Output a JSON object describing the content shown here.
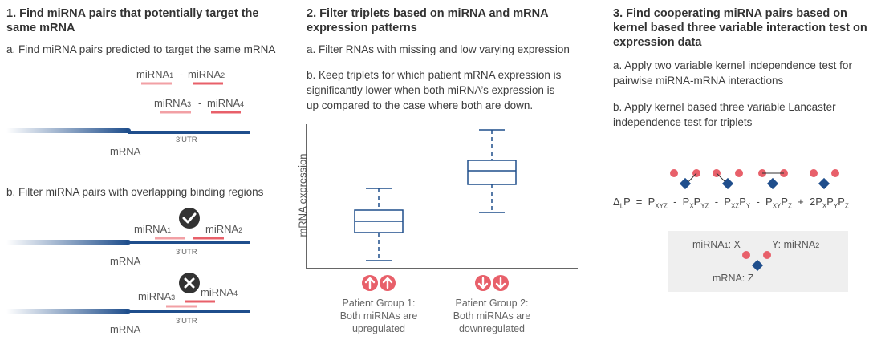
{
  "colors": {
    "accent": "#e8606a",
    "line": "#1f4e8c",
    "box": "#efefef",
    "text": "#3d3d3d"
  },
  "panel1": {
    "heading_line1": "1. Find miRNA pairs that potentially target the",
    "heading_line2": "same mRNA",
    "step_a": "a. Find miRNA pairs predicted to target the same mRNA",
    "step_b": "b. Filter miRNA pairs with overlapping binding regions",
    "mirna1": "miRNA",
    "mirna1_sub": "1",
    "mirna2": "miRNA",
    "mirna2_sub": "2",
    "mirna3": "miRNA",
    "mirna3_sub": "3",
    "mirna4": "miRNA",
    "mirna4_sub": "4",
    "dash": "-",
    "mrna": "mRNA",
    "utr": "3'UTR",
    "check_icon": "check-circle-icon",
    "cross_icon": "cross-circle-icon"
  },
  "panel2": {
    "heading_line1": "2. Filter triplets based on miRNA and mRNA",
    "heading_line2": "expression patterns",
    "step_a": "a. Filter RNAs with missing and low varying expression",
    "step_b_line1": "b. Keep triplets for which patient mRNA expression is",
    "step_b_line2": "significantly lower when both miRNA’s expression is",
    "step_b_line3": "up compared to the case where both are down.",
    "ylabel": "mRNA expression",
    "group1_line1": "Patient Group 1:",
    "group1_line2": "Both miRNAs are",
    "group1_line3": "upregulated",
    "group2_line1": "Patient Group 2:",
    "group2_line2": "Both miRNAs are",
    "group2_line3": "downregulated",
    "up_icon": "arrow-up-circle-icon",
    "down_icon": "arrow-down-circle-icon"
  },
  "panel3": {
    "heading_line1": "3. Find cooperating miRNA pairs based on",
    "heading_line2": "kernel based three variable interaction test on",
    "heading_line3": "expression data",
    "step_a_line1": "a. Apply two variable kernel independence test for",
    "step_a_line2": "pairwise miRNA-mRNA interactions",
    "step_b_line1": "b. Apply kernel based three variable Lancaster",
    "step_b_line2": "independence test for triplets",
    "legend_mirna1": "miRNA",
    "legend_mirna1_sub": "1",
    "legend_x": ": X",
    "legend_y": "Y: miRNA",
    "legend_y_sub": "2",
    "legend_mrna": "mRNA: Z"
  }
}
